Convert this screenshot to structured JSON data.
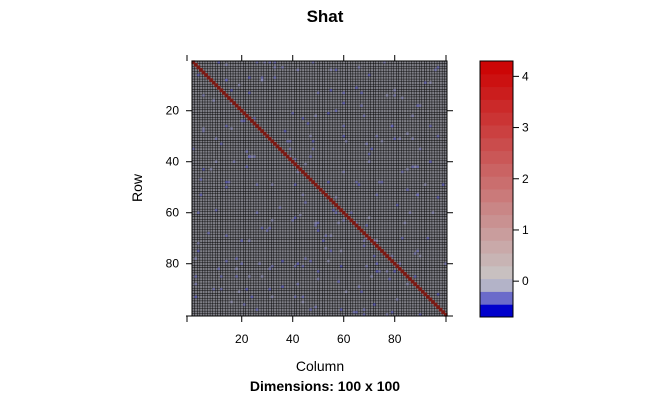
{
  "chart_data": {
    "type": "heatmap",
    "title": "Shat",
    "subtitle": "Dimensions: 100 x 100",
    "xlabel": "Column",
    "ylabel": "Row",
    "rows": 100,
    "columns": 100,
    "x_ticks": [
      20,
      40,
      60,
      80
    ],
    "y_ticks": [
      20,
      40,
      60,
      80
    ],
    "diagonal_value": 4.3,
    "offdiagonal_typical_value": 0.0,
    "offdiagonal_min_value": -0.6,
    "colorbar": {
      "range": [
        -0.7,
        4.3
      ],
      "ticks": [
        0,
        1,
        2,
        3,
        4
      ],
      "low_color": "#0000CC",
      "mid_color": "#C8C8C8",
      "high_color": "#CC0000"
    },
    "grid": true,
    "cell_border_color": "#000000"
  }
}
